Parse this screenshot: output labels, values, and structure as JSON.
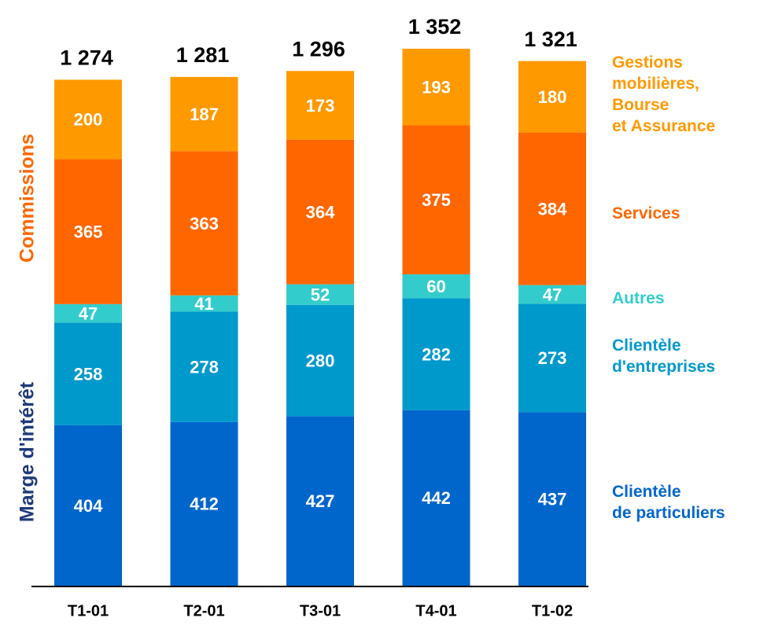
{
  "chart_data": {
    "type": "stacked_bar",
    "categories": [
      "T1-01",
      "T2-01",
      "T3-01",
      "T4-01",
      "T1-02"
    ],
    "series": [
      {
        "name": "Clientèle\nde particuliers",
        "color": "#0066cc",
        "values": [
          404,
          412,
          427,
          442,
          437
        ]
      },
      {
        "name": "Clientèle\nd'entreprises",
        "color": "#0099cc",
        "values": [
          258,
          278,
          280,
          282,
          273
        ]
      },
      {
        "name": "Autres",
        "color": "#33cccc",
        "values": [
          47,
          41,
          52,
          60,
          47
        ]
      },
      {
        "name": "Services",
        "color": "#ff6600",
        "values": [
          365,
          363,
          364,
          375,
          384
        ]
      },
      {
        "name": "Gestions\nmobilières,\nBourse\net Assurance",
        "color": "#ff9900",
        "values": [
          200,
          187,
          173,
          193,
          180
        ]
      }
    ],
    "totals": [
      1274,
      1281,
      1296,
      1352,
      1321
    ],
    "total_labels": [
      "1 274",
      "1 281",
      "1 296",
      "1 352",
      "1 321"
    ],
    "group_labels": [
      {
        "text": "Commissions",
        "color": "#ff6600"
      },
      {
        "text": "Marge d'intérêt",
        "color": "#1f3a7a"
      }
    ]
  }
}
